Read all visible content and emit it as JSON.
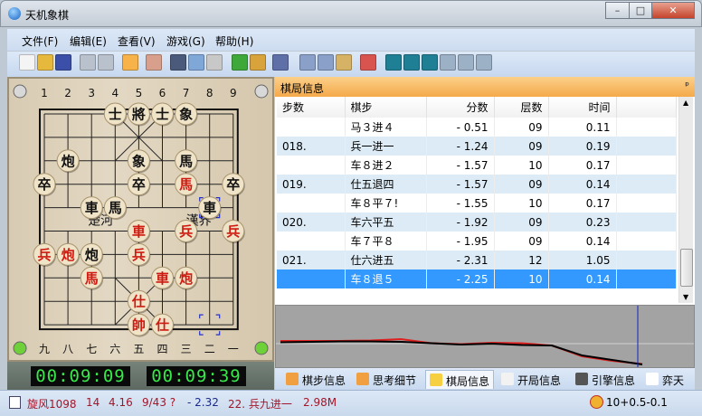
{
  "window": {
    "title": "天机象棋",
    "controls": [
      "–",
      "□",
      "✕"
    ]
  },
  "menu": [
    "文件(F)",
    "编辑(E)",
    "查看(V)",
    "游戏(G)",
    "帮助(H)"
  ],
  "toolbar": [
    {
      "icon": "new-icon",
      "color": "#f4f4f4"
    },
    {
      "icon": "open-folder-icon",
      "color": "#e6b93c"
    },
    {
      "icon": "save-icon",
      "color": "#3b4fa8"
    },
    {
      "icon": "monitor-icon",
      "color": "#b9c2cc"
    },
    {
      "icon": "monitor2-icon",
      "color": "#b9c2cc"
    },
    {
      "icon": "search-icon",
      "color": "#f7b24a"
    },
    {
      "icon": "thermometer-icon",
      "color": "#d8a08c"
    },
    {
      "icon": "rook-icon",
      "color": "#4b5a7a"
    },
    {
      "icon": "phone-icon",
      "color": "#7fa7d8"
    },
    {
      "icon": "g-icon",
      "color": "#c8c8c8"
    },
    {
      "icon": "flag-arrow-icon",
      "color": "#3ea83a"
    },
    {
      "icon": "lock-icon",
      "color": "#d9a33c"
    },
    {
      "icon": "settings-doc-icon",
      "color": "#5f6fa8"
    },
    {
      "icon": "copy-icon",
      "color": "#8aa0c8"
    },
    {
      "icon": "copy2-icon",
      "color": "#8aa0c8"
    },
    {
      "icon": "paste-icon",
      "color": "#d6b364"
    },
    {
      "icon": "undo-icon",
      "color": "#d9534f"
    },
    {
      "icon": "first-icon",
      "color": "#1f7f95"
    },
    {
      "icon": "rewind-icon",
      "color": "#1f7f95"
    },
    {
      "icon": "prev-icon",
      "color": "#1f7f95"
    },
    {
      "icon": "next-icon",
      "color": "#9cb0c6"
    },
    {
      "icon": "fast-forward-icon",
      "color": "#9cb0c6"
    },
    {
      "icon": "last-icon",
      "color": "#9cb0c6"
    }
  ],
  "board": {
    "top_labels": [
      "1",
      "2",
      "3",
      "4",
      "5",
      "6",
      "7",
      "8",
      "9"
    ],
    "bottom_labels": [
      "九",
      "八",
      "七",
      "六",
      "五",
      "四",
      "三",
      "二",
      "一"
    ],
    "river": [
      "楚河",
      "漢界"
    ],
    "pieces": [
      {
        "c": 3,
        "r": 0,
        "t": "士",
        "side": "black"
      },
      {
        "c": 4,
        "r": 0,
        "t": "將",
        "side": "black"
      },
      {
        "c": 5,
        "r": 0,
        "t": "士",
        "side": "black"
      },
      {
        "c": 6,
        "r": 0,
        "t": "象",
        "side": "black"
      },
      {
        "c": 1,
        "r": 2,
        "t": "炮",
        "side": "black"
      },
      {
        "c": 4,
        "r": 2,
        "t": "象",
        "side": "black"
      },
      {
        "c": 6,
        "r": 2,
        "t": "馬",
        "side": "black"
      },
      {
        "c": 0,
        "r": 3,
        "t": "卒",
        "side": "black"
      },
      {
        "c": 4,
        "r": 3,
        "t": "卒",
        "side": "black"
      },
      {
        "c": 6,
        "r": 3,
        "t": "馬",
        "side": "red"
      },
      {
        "c": 8,
        "r": 3,
        "t": "卒",
        "side": "black"
      },
      {
        "c": 2,
        "r": 4,
        "t": "車",
        "side": "black"
      },
      {
        "c": 3,
        "r": 4,
        "t": "馬",
        "side": "black"
      },
      {
        "c": 7,
        "r": 4,
        "t": "車",
        "side": "black"
      },
      {
        "c": 4,
        "r": 5,
        "t": "車",
        "side": "red"
      },
      {
        "c": 6,
        "r": 5,
        "t": "兵",
        "side": "red"
      },
      {
        "c": 8,
        "r": 5,
        "t": "兵",
        "side": "red"
      },
      {
        "c": 0,
        "r": 6,
        "t": "兵",
        "side": "red"
      },
      {
        "c": 1,
        "r": 6,
        "t": "炮",
        "side": "red"
      },
      {
        "c": 2,
        "r": 6,
        "t": "炮",
        "side": "black"
      },
      {
        "c": 4,
        "r": 6,
        "t": "兵",
        "side": "red"
      },
      {
        "c": 2,
        "r": 7,
        "t": "馬",
        "side": "red"
      },
      {
        "c": 5,
        "r": 7,
        "t": "車",
        "side": "red"
      },
      {
        "c": 6,
        "r": 7,
        "t": "炮",
        "side": "red"
      },
      {
        "c": 4,
        "r": 8,
        "t": "仕",
        "side": "red"
      },
      {
        "c": 4,
        "r": 9,
        "t": "帥",
        "side": "red"
      },
      {
        "c": 5,
        "r": 9,
        "t": "仕",
        "side": "red"
      }
    ],
    "last_move": {
      "from": {
        "c": 7,
        "r": 9
      },
      "to": {
        "c": 7,
        "r": 4
      }
    }
  },
  "clocks": [
    "00:09:09",
    "00:09:39"
  ],
  "panel": {
    "title": "棋局信息",
    "pin": "ᵖ",
    "columns": [
      "步数",
      "棋步",
      "分数",
      "层数",
      "时间"
    ],
    "rows": [
      [
        "",
        "马３进４",
        "- 0.51",
        "09",
        "0.11"
      ],
      [
        "018.",
        "兵一进一",
        "- 1.24",
        "09",
        "0.19"
      ],
      [
        "",
        "车８进２",
        "- 1.57",
        "10",
        "0.17"
      ],
      [
        "019.",
        "仕五退四",
        "- 1.57",
        "09",
        "0.14"
      ],
      [
        "",
        "车８平７!",
        "- 1.55",
        "10",
        "0.17"
      ],
      [
        "020.",
        "车六平五",
        "- 1.92",
        "09",
        "0.23"
      ],
      [
        "",
        "车７平８",
        "- 1.95",
        "09",
        "0.14"
      ],
      [
        "021.",
        "仕六进五",
        "- 2.31",
        "12",
        "1.05"
      ],
      [
        "",
        "车８退５",
        "- 2.25",
        "10",
        "0.14"
      ]
    ],
    "selected_row": 8
  },
  "graph": {
    "red": [
      0.3,
      0.3,
      0.3,
      0.35,
      0.5,
      0.05,
      -0.05,
      0.1,
      0.05,
      -0.2,
      -1.4,
      -1.9,
      -2.25
    ],
    "black": [
      0.15,
      0.2,
      0.25,
      0.25,
      0.2,
      0.05,
      -0.1,
      0.0,
      -0.15,
      -0.2,
      -1.3,
      -1.8,
      -2.3
    ],
    "colors": {
      "red": "#e02020",
      "black": "#000000",
      "cursor": "#1020c0"
    }
  },
  "tabs": [
    {
      "label": "棋步信息",
      "icon": "move-info-icon"
    },
    {
      "label": "思考细节",
      "icon": "thinking-icon"
    },
    {
      "label": "棋局信息",
      "icon": "notepad-icon",
      "active": true
    },
    {
      "label": "开局信息",
      "icon": "pencil-icon"
    },
    {
      "label": "引擎信息",
      "icon": "engine-icon"
    },
    {
      "label": "弈天",
      "icon": "yitian-icon"
    }
  ],
  "status": {
    "engine": "旋风1098",
    "depth": "14",
    "time": "4.16",
    "nodes": "9/43 ?",
    "score": "- 2.32",
    "best": "22. 兵九进一",
    "speed": "2.98M",
    "timecontrol": "10+0.5-0.1"
  }
}
